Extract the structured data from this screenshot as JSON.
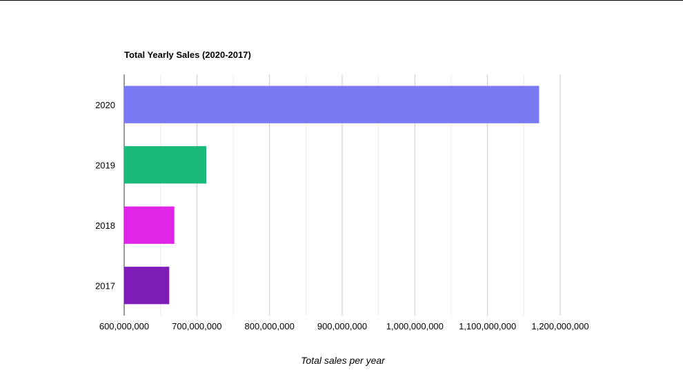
{
  "chart_data": {
    "type": "bar",
    "orientation": "horizontal",
    "title": "Total Yearly Sales (2020-2017)",
    "xlabel": "Total sales per year",
    "ylabel": "",
    "categories": [
      "2020",
      "2019",
      "2018",
      "2017"
    ],
    "values": [
      1171000000,
      713000000,
      669000000,
      662000000
    ],
    "colors": [
      "#7a7af5",
      "#1bb97a",
      "#e024e8",
      "#7f1db8"
    ],
    "xlim": [
      600000000,
      1200000000
    ],
    "x_ticks": [
      "600,000,000",
      "700,000,000",
      "800,000,000",
      "900,000,000",
      "1,000,000,000",
      "1,100,000,000",
      "1,200,000,000"
    ],
    "grid": true,
    "legend": "none"
  }
}
